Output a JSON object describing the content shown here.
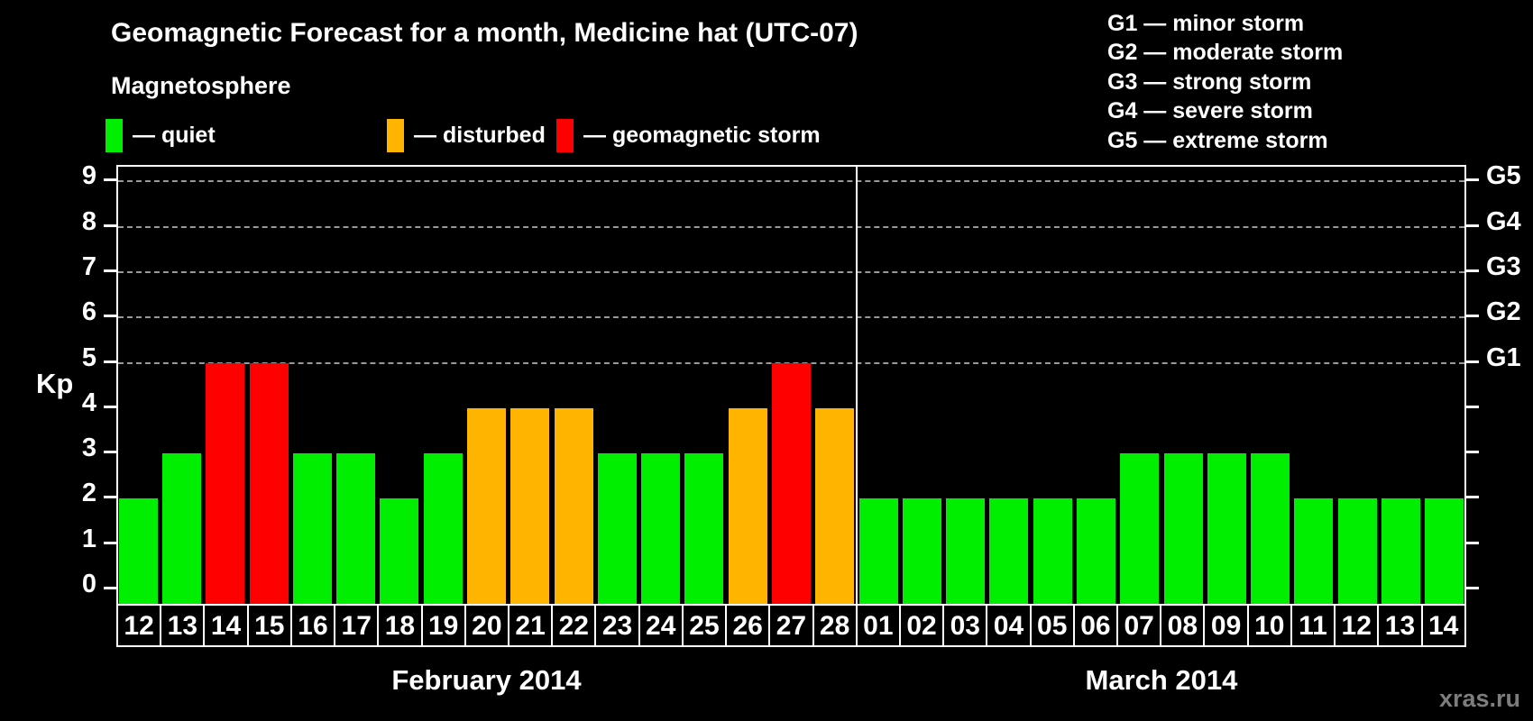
{
  "title": "Geomagnetic Forecast for a month, Medicine hat (UTC-07)",
  "legend": {
    "heading": "Magnetosphere",
    "items": [
      {
        "name": "quiet",
        "label": "— quiet",
        "color": "#00EE00"
      },
      {
        "name": "disturbed",
        "label": "— disturbed",
        "color": "#FFB400"
      },
      {
        "name": "storm",
        "label": "— geomagnetic storm",
        "color": "#FF0000"
      }
    ]
  },
  "storm_scale_legend": [
    "G1 — minor storm",
    "G2 — moderate storm",
    "G3 — strong storm",
    "G4 — severe storm",
    "G5 — extreme storm"
  ],
  "watermark": "xras.ru",
  "chart_data": {
    "type": "bar",
    "ylabel": "Kp",
    "ylim": [
      0,
      9
    ],
    "yticks": [
      0,
      1,
      2,
      3,
      4,
      5,
      6,
      7,
      8,
      9
    ],
    "grid": "dashed horizontal lines at Kp 5-9 only",
    "legend_position": "top",
    "right_axis": [
      {
        "label": "G1",
        "kp": 5
      },
      {
        "label": "G2",
        "kp": 6
      },
      {
        "label": "G3",
        "kp": 7
      },
      {
        "label": "G4",
        "kp": 8
      },
      {
        "label": "G5",
        "kp": 9
      }
    ],
    "colors": {
      "quiet": "#00EE00",
      "disturbed": "#FFB400",
      "storm": "#FF0000"
    },
    "grid_color": "#999999",
    "months": [
      {
        "label": "February 2014",
        "bars": [
          {
            "day": "12",
            "kp": 2,
            "level": "quiet"
          },
          {
            "day": "13",
            "kp": 3,
            "level": "quiet"
          },
          {
            "day": "14",
            "kp": 5,
            "level": "storm"
          },
          {
            "day": "15",
            "kp": 5,
            "level": "storm"
          },
          {
            "day": "16",
            "kp": 3,
            "level": "quiet"
          },
          {
            "day": "17",
            "kp": 3,
            "level": "quiet"
          },
          {
            "day": "18",
            "kp": 2,
            "level": "quiet"
          },
          {
            "day": "19",
            "kp": 3,
            "level": "quiet"
          },
          {
            "day": "20",
            "kp": 4,
            "level": "disturbed"
          },
          {
            "day": "21",
            "kp": 4,
            "level": "disturbed"
          },
          {
            "day": "22",
            "kp": 4,
            "level": "disturbed"
          },
          {
            "day": "23",
            "kp": 3,
            "level": "quiet"
          },
          {
            "day": "24",
            "kp": 3,
            "level": "quiet"
          },
          {
            "day": "25",
            "kp": 3,
            "level": "quiet"
          },
          {
            "day": "26",
            "kp": 4,
            "level": "disturbed"
          },
          {
            "day": "27",
            "kp": 5,
            "level": "storm"
          },
          {
            "day": "28",
            "kp": 4,
            "level": "disturbed"
          }
        ]
      },
      {
        "label": "March 2014",
        "bars": [
          {
            "day": "01",
            "kp": 2,
            "level": "quiet"
          },
          {
            "day": "02",
            "kp": 2,
            "level": "quiet"
          },
          {
            "day": "03",
            "kp": 2,
            "level": "quiet"
          },
          {
            "day": "04",
            "kp": 2,
            "level": "quiet"
          },
          {
            "day": "05",
            "kp": 2,
            "level": "quiet"
          },
          {
            "day": "06",
            "kp": 2,
            "level": "quiet"
          },
          {
            "day": "07",
            "kp": 3,
            "level": "quiet"
          },
          {
            "day": "08",
            "kp": 3,
            "level": "quiet"
          },
          {
            "day": "09",
            "kp": 3,
            "level": "quiet"
          },
          {
            "day": "10",
            "kp": 3,
            "level": "quiet"
          },
          {
            "day": "11",
            "kp": 2,
            "level": "quiet"
          },
          {
            "day": "12",
            "kp": 2,
            "level": "quiet"
          },
          {
            "day": "13",
            "kp": 2,
            "level": "quiet"
          },
          {
            "day": "14",
            "kp": 2,
            "level": "quiet"
          }
        ]
      }
    ]
  }
}
